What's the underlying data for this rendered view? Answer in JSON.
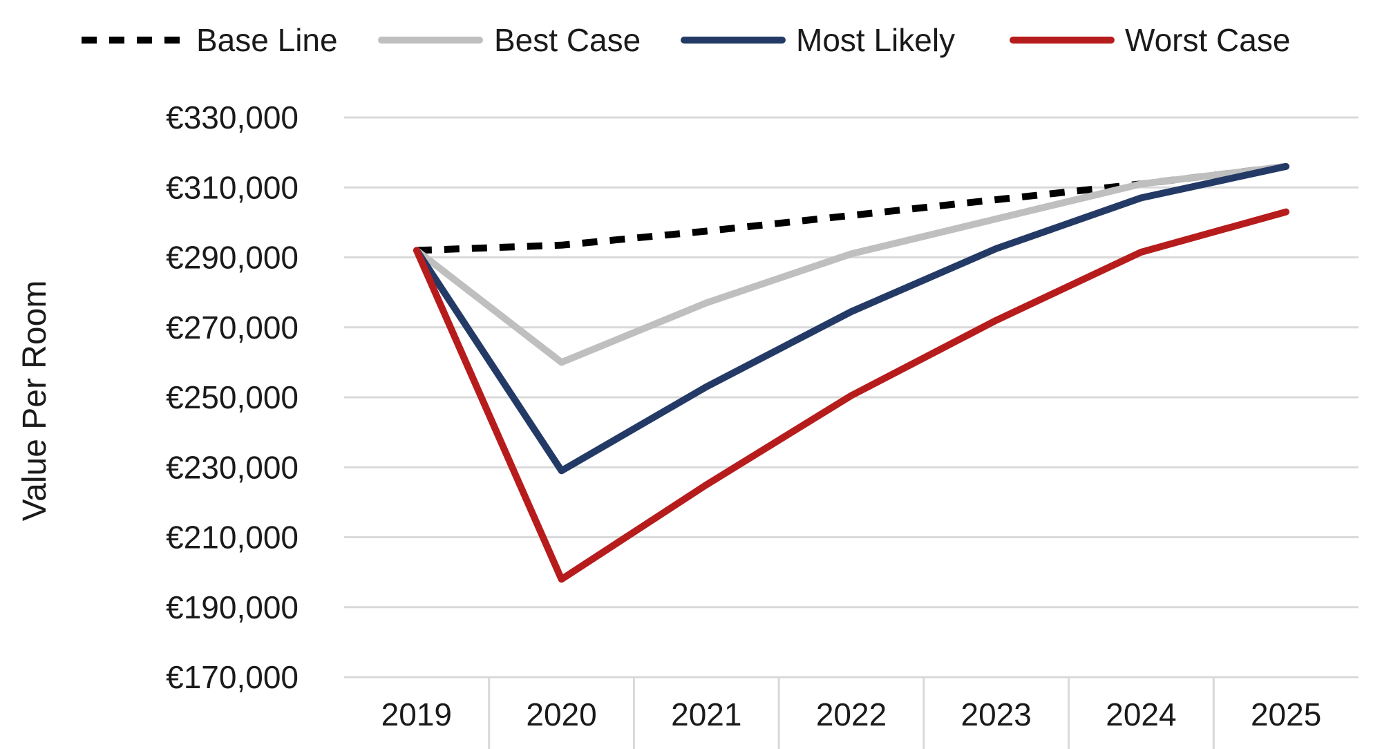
{
  "chart_data": {
    "type": "line",
    "title": "",
    "xlabel": "",
    "ylabel": "Value Per Room",
    "x": [
      "2019",
      "2020",
      "2021",
      "2022",
      "2023",
      "2024",
      "2025"
    ],
    "ylim": [
      170000,
      330000
    ],
    "yticks": [
      170000,
      190000,
      210000,
      230000,
      250000,
      270000,
      290000,
      310000,
      330000
    ],
    "ytick_labels": [
      "€170,000",
      "€190,000",
      "€210,000",
      "€230,000",
      "€250,000",
      "€270,000",
      "€290,000",
      "€310,000",
      "€330,000"
    ],
    "grid": true,
    "legend_position": "top",
    "series": [
      {
        "name": "Base Line",
        "color": "#000000",
        "style": "dashed",
        "values": [
          292000,
          293500,
          297500,
          302000,
          306500,
          311000,
          316000
        ]
      },
      {
        "name": "Best Case",
        "color": "#bfbfbf",
        "style": "solid",
        "values": [
          292000,
          260000,
          277000,
          291000,
          301000,
          311000,
          316000
        ]
      },
      {
        "name": "Most Likely",
        "color": "#243a66",
        "style": "solid",
        "values": [
          292000,
          229000,
          253000,
          274500,
          292500,
          307000,
          316000
        ]
      },
      {
        "name": "Worst Case",
        "color": "#b71c1c",
        "style": "solid",
        "values": [
          292000,
          198000,
          225000,
          250500,
          272000,
          291500,
          303000
        ]
      }
    ]
  }
}
